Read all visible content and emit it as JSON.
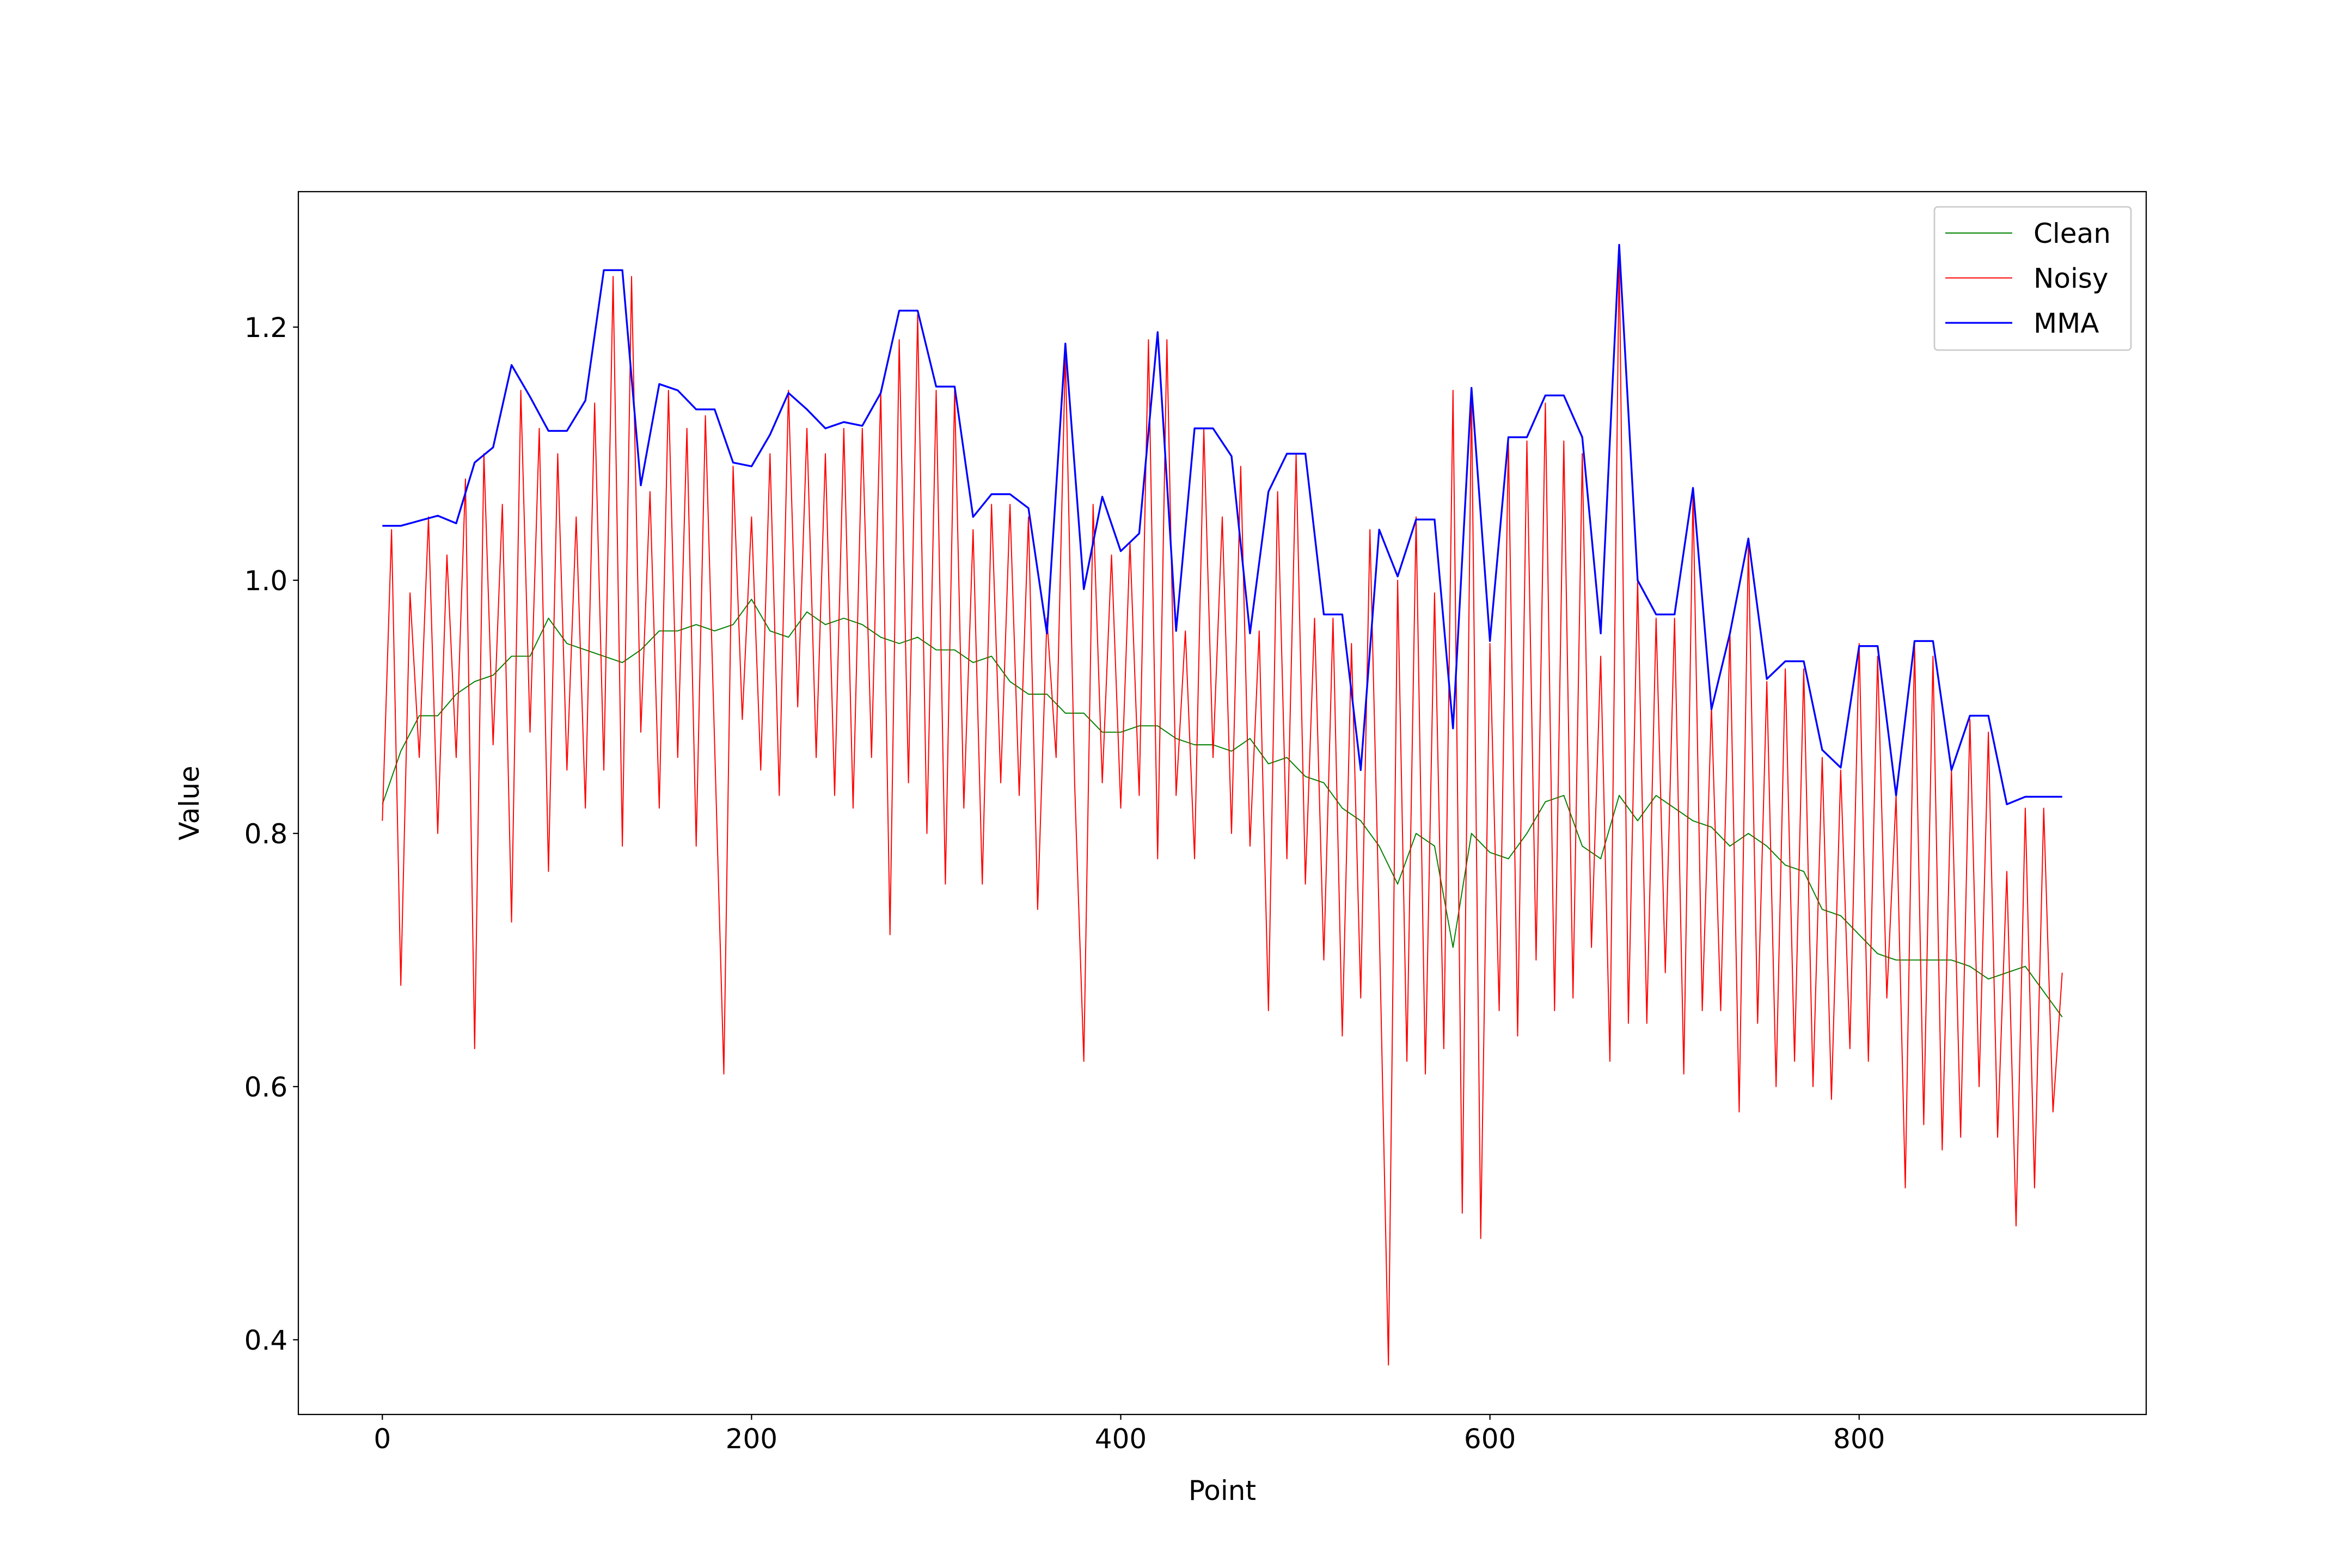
{
  "chart_data": {
    "type": "line",
    "xlabel": "Point",
    "ylabel": "Value",
    "xlim": [
      -45.5,
      955.5
    ],
    "ylim": [
      0.341,
      1.307
    ],
    "xticks": [
      0,
      200,
      400,
      600,
      800
    ],
    "yticks": [
      0.4,
      0.6,
      0.8,
      {
        "value": 1,
        "label": "1.0"
      },
      1.2
    ],
    "legend": "upper right",
    "series": [
      {
        "name": "Clean",
        "color": "green",
        "width": 0.7,
        "x": [
          0,
          10,
          20,
          30,
          40,
          50,
          60,
          70,
          80,
          90,
          100,
          110,
          120,
          130,
          140,
          150,
          160,
          170,
          180,
          190,
          200,
          210,
          220,
          230,
          240,
          250,
          260,
          270,
          280,
          290,
          300,
          310,
          320,
          330,
          340,
          350,
          360,
          370,
          380,
          390,
          400,
          410,
          420,
          430,
          440,
          450,
          460,
          470,
          480,
          490,
          500,
          510,
          520,
          530,
          540,
          550,
          560,
          570,
          580,
          590,
          600,
          610,
          620,
          630,
          640,
          650,
          660,
          670,
          680,
          690,
          700,
          710,
          720,
          730,
          740,
          750,
          760,
          770,
          780,
          790,
          800,
          810,
          820,
          830,
          840,
          850,
          860,
          870,
          880,
          890,
          900,
          910
        ],
        "values": [
          0.823,
          0.865,
          0.893,
          0.893,
          0.91,
          0.92,
          0.925,
          0.94,
          0.94,
          0.97,
          0.95,
          0.945,
          0.94,
          0.935,
          0.945,
          0.96,
          0.96,
          0.965,
          0.96,
          0.965,
          0.985,
          0.96,
          0.955,
          0.975,
          0.965,
          0.97,
          0.965,
          0.955,
          0.95,
          0.955,
          0.945,
          0.945,
          0.935,
          0.94,
          0.92,
          0.91,
          0.91,
          0.895,
          0.895,
          0.88,
          0.88,
          0.885,
          0.885,
          0.875,
          0.87,
          0.87,
          0.865,
          0.875,
          0.855,
          0.86,
          0.845,
          0.84,
          0.82,
          0.81,
          0.79,
          0.76,
          0.8,
          0.79,
          0.71,
          0.8,
          0.785,
          0.78,
          0.8,
          0.825,
          0.83,
          0.79,
          0.78,
          0.83,
          0.81,
          0.83,
          0.82,
          0.81,
          0.805,
          0.79,
          0.8,
          0.79,
          0.775,
          0.77,
          0.74,
          0.735,
          0.72,
          0.705,
          0.7,
          0.7,
          0.7,
          0.7,
          0.695,
          0.685,
          0.69,
          0.695,
          0.675,
          0.655
        ]
      },
      {
        "name": "Noisy",
        "color": "red",
        "width": 0.7,
        "x": [
          0,
          5,
          10,
          15,
          20,
          25,
          30,
          35,
          40,
          45,
          50,
          55,
          60,
          65,
          70,
          75,
          80,
          85,
          90,
          95,
          100,
          105,
          110,
          115,
          120,
          125,
          130,
          135,
          140,
          145,
          150,
          155,
          160,
          165,
          170,
          175,
          180,
          185,
          190,
          195,
          200,
          205,
          210,
          215,
          220,
          225,
          230,
          235,
          240,
          245,
          250,
          255,
          260,
          265,
          270,
          275,
          280,
          285,
          290,
          295,
          300,
          305,
          310,
          315,
          320,
          325,
          330,
          335,
          340,
          345,
          350,
          355,
          360,
          365,
          370,
          375,
          380,
          385,
          390,
          395,
          400,
          405,
          410,
          415,
          420,
          425,
          430,
          435,
          440,
          445,
          450,
          455,
          460,
          465,
          470,
          475,
          480,
          485,
          490,
          495,
          500,
          505,
          510,
          515,
          520,
          525,
          530,
          535,
          540,
          545,
          550,
          555,
          560,
          565,
          570,
          575,
          580,
          585,
          590,
          595,
          600,
          605,
          610,
          615,
          620,
          625,
          630,
          635,
          640,
          645,
          650,
          655,
          660,
          665,
          670,
          675,
          680,
          685,
          690,
          695,
          700,
          705,
          710,
          715,
          720,
          725,
          730,
          735,
          740,
          745,
          750,
          755,
          760,
          765,
          770,
          775,
          780,
          785,
          790,
          795,
          800,
          805,
          810,
          815,
          820,
          825,
          830,
          835,
          840,
          845,
          850,
          855,
          860,
          865,
          870,
          875,
          880,
          885,
          890,
          895,
          900,
          905,
          910
        ],
        "values": [
          0.81,
          1.04,
          0.68,
          0.99,
          0.86,
          1.05,
          0.8,
          1.02,
          0.86,
          1.08,
          0.63,
          1.1,
          0.87,
          1.06,
          0.73,
          1.15,
          0.88,
          1.12,
          0.77,
          1.1,
          0.85,
          1.05,
          0.82,
          1.14,
          0.85,
          1.24,
          0.79,
          1.24,
          0.88,
          1.07,
          0.82,
          1.15,
          0.86,
          1.12,
          0.79,
          1.13,
          0.87,
          0.61,
          1.09,
          0.89,
          1.05,
          0.85,
          1.1,
          0.83,
          1.15,
          0.9,
          1.12,
          0.86,
          1.1,
          0.83,
          1.12,
          0.82,
          1.12,
          0.86,
          1.15,
          0.72,
          1.19,
          0.84,
          1.21,
          0.8,
          1.15,
          0.76,
          1.15,
          0.82,
          1.04,
          0.76,
          1.06,
          0.84,
          1.06,
          0.83,
          1.05,
          0.74,
          0.97,
          0.86,
          1.18,
          0.84,
          0.62,
          1.06,
          0.84,
          1.02,
          0.82,
          1.03,
          0.83,
          1.19,
          0.78,
          1.19,
          0.83,
          0.96,
          0.78,
          1.12,
          0.86,
          1.05,
          0.8,
          1.09,
          0.79,
          0.96,
          0.66,
          1.07,
          0.78,
          1.1,
          0.76,
          0.97,
          0.7,
          0.97,
          0.64,
          0.95,
          0.67,
          1.04,
          0.73,
          0.38,
          1.0,
          0.62,
          1.05,
          0.61,
          0.99,
          0.63,
          1.15,
          0.5,
          1.15,
          0.48,
          0.95,
          0.66,
          1.11,
          0.64,
          1.11,
          0.7,
          1.14,
          0.66,
          1.11,
          0.67,
          1.1,
          0.71,
          0.94,
          0.62,
          1.26,
          0.65,
          1.0,
          0.65,
          0.97,
          0.69,
          0.97,
          0.61,
          1.07,
          0.66,
          0.9,
          0.66,
          0.96,
          0.58,
          1.03,
          0.65,
          0.92,
          0.6,
          0.93,
          0.62,
          0.93,
          0.6,
          0.86,
          0.59,
          0.85,
          0.63,
          0.95,
          0.62,
          0.94,
          0.67,
          0.83,
          0.52,
          0.95,
          0.57,
          0.94,
          0.55,
          0.85,
          0.56,
          0.89,
          0.6,
          0.88,
          0.56,
          0.77,
          0.49,
          0.82,
          0.52,
          0.82,
          0.58,
          0.69
        ]
      },
      {
        "name": "MMA",
        "color": "blue",
        "width": 1.2,
        "x": [
          0,
          10,
          20,
          30,
          40,
          50,
          60,
          70,
          80,
          90,
          100,
          110,
          120,
          130,
          140,
          150,
          160,
          170,
          180,
          190,
          200,
          210,
          220,
          230,
          240,
          250,
          260,
          270,
          280,
          290,
          300,
          310,
          320,
          330,
          340,
          350,
          360,
          370,
          380,
          390,
          400,
          410,
          420,
          430,
          440,
          450,
          460,
          470,
          480,
          490,
          500,
          510,
          520,
          530,
          540,
          550,
          560,
          570,
          580,
          590,
          600,
          610,
          620,
          630,
          640,
          650,
          660,
          670,
          680,
          690,
          700,
          710,
          720,
          730,
          740,
          750,
          760,
          770,
          780,
          790,
          800,
          810,
          820,
          830,
          840,
          850,
          860,
          870,
          880,
          890,
          900,
          910
        ],
        "values": [
          1.043,
          1.043,
          1.047,
          1.051,
          1.045,
          1.093,
          1.105,
          1.17,
          1.145,
          1.118,
          1.118,
          1.142,
          1.245,
          1.245,
          1.075,
          1.155,
          1.15,
          1.135,
          1.135,
          1.093,
          1.09,
          1.115,
          1.148,
          1.135,
          1.12,
          1.125,
          1.122,
          1.148,
          1.213,
          1.213,
          1.153,
          1.153,
          1.05,
          1.068,
          1.068,
          1.057,
          0.958,
          1.187,
          0.993,
          1.066,
          1.023,
          1.037,
          1.196,
          0.96,
          1.12,
          1.12,
          1.098,
          0.958,
          1.07,
          1.1,
          1.1,
          0.973,
          0.973,
          0.85,
          1.04,
          1.003,
          1.048,
          1.048,
          0.883,
          1.152,
          0.952,
          1.113,
          1.113,
          1.146,
          1.146,
          1.113,
          0.958,
          1.265,
          1.0,
          0.973,
          0.973,
          1.073,
          0.898,
          0.958,
          1.033,
          0.922,
          0.936,
          0.936,
          0.866,
          0.852,
          0.948,
          0.948,
          0.83,
          0.952,
          0.952,
          0.85,
          0.893,
          0.893,
          0.823,
          0.829,
          0.829,
          0.829
        ]
      }
    ]
  }
}
